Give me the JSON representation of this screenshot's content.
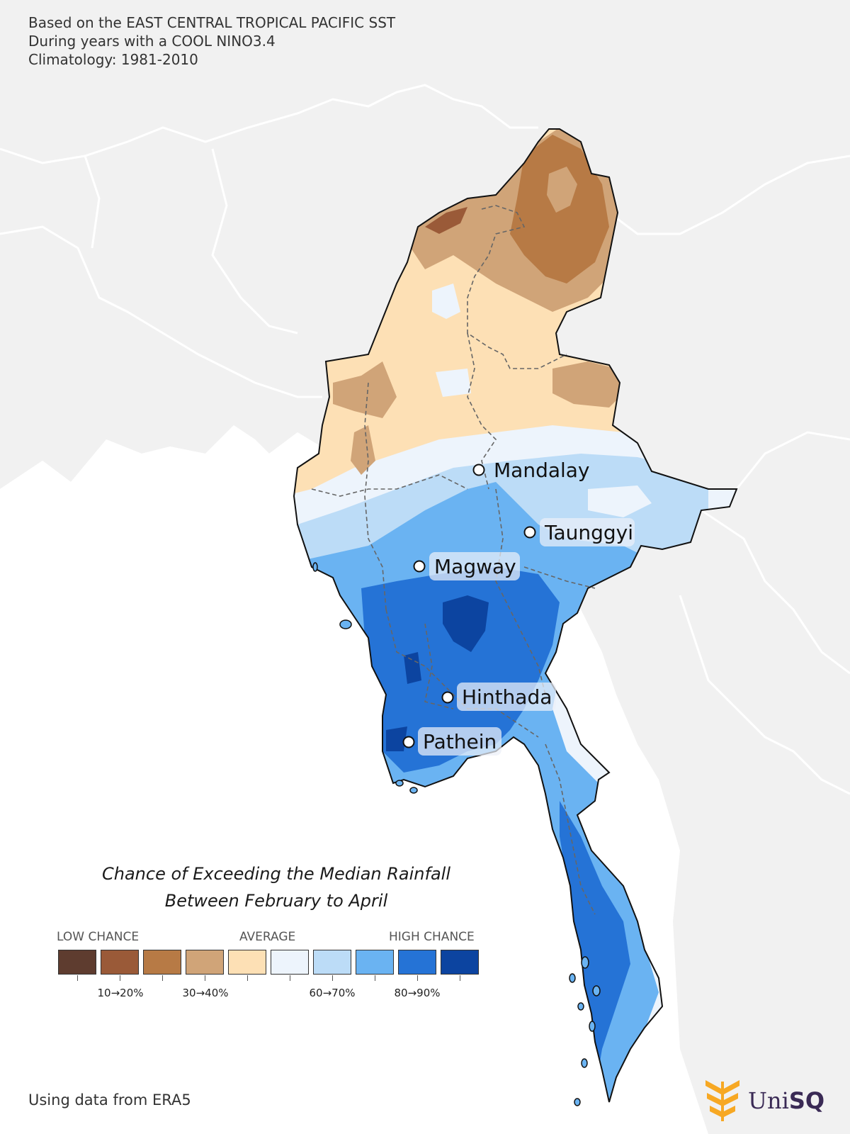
{
  "header": {
    "line1": "Based on the EAST CENTRAL TROPICAL PACIFIC SST",
    "line2": "During years with a COOL NINO3.4",
    "line3": "Climatology: 1981-2010"
  },
  "cities": [
    {
      "name": "Mandalay"
    },
    {
      "name": "Taunggyi"
    },
    {
      "name": "Magway"
    },
    {
      "name": "Hinthada"
    },
    {
      "name": "Pathein"
    }
  ],
  "title": {
    "line1": "Chance of Exceeding the Median Rainfall",
    "line2": "Between February to April"
  },
  "legend": {
    "low_label": "LOW CHANCE",
    "avg_label": "AVERAGE",
    "high_label": "HIGH CHANCE",
    "colors": [
      "#5e3c2f",
      "#9a5a38",
      "#b77a45",
      "#d0a478",
      "#fde0b5",
      "#edf4fc",
      "#bcdcf7",
      "#6ab3f2",
      "#2573d6",
      "#0c44a0"
    ],
    "tick_labels": [
      "10→20%",
      "30→40%",
      "60→70%",
      "80→90%"
    ]
  },
  "footer": {
    "source": "Using data from ERA5",
    "logo_text_regular": "Uni",
    "logo_text_bold": "SQ",
    "logo_color": "#f7a823"
  }
}
